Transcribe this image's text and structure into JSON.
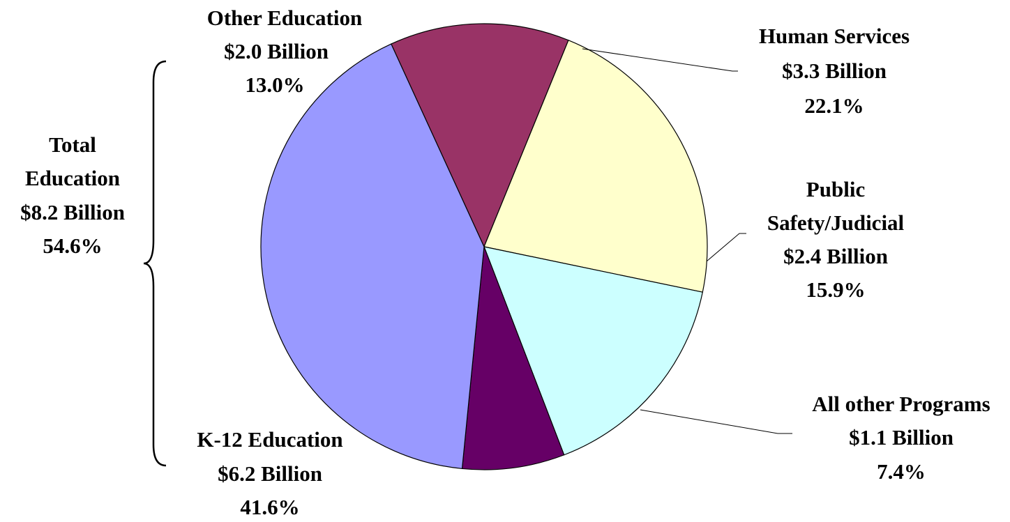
{
  "chart_data": {
    "type": "pie",
    "title": "",
    "start_angle_deg": -114.6,
    "direction": "clockwise",
    "slices": [
      {
        "label": "Other Education",
        "amount": "$2.0 Billion",
        "percent": "13.0%",
        "value": 13.0,
        "color": "#993366"
      },
      {
        "label": "Human Services",
        "amount": "$3.3 Billion",
        "percent": "22.1%",
        "value": 22.1,
        "color": "#FFFFCC"
      },
      {
        "label": "Public Safety/Judicial",
        "amount": "$2.4 Billion",
        "percent": "15.9%",
        "value": 15.9,
        "color": "#CCFFFF"
      },
      {
        "label": "All other Programs",
        "amount": "$1.1 Billion",
        "percent": "7.4%",
        "value": 7.4,
        "color": "#660066"
      },
      {
        "label": "K-12 Education",
        "amount": "$6.2 Billion",
        "percent": "41.6%",
        "value": 41.6,
        "color": "#9999FF"
      }
    ],
    "group_annotation": {
      "lines": [
        "Total",
        "Education",
        "$8.2 Billion",
        "54.6%"
      ],
      "covers": [
        "Other Education",
        "K-12 Education"
      ]
    }
  },
  "labels": {
    "other_education": [
      "Other Education",
      "$2.0 Billion",
      "13.0%"
    ],
    "human_services": [
      "Human Services",
      "$3.3 Billion",
      "22.1%"
    ],
    "public_safety": [
      "Public",
      "Safety/Judicial",
      "$2.4 Billion",
      "15.9%"
    ],
    "all_other": [
      "All other Programs",
      "$1.1 Billion",
      "7.4%"
    ],
    "k12": [
      "K-12 Education",
      "$6.2 Billion",
      "41.6%"
    ],
    "total_education": [
      "Total",
      "Education",
      "$8.2 Billion",
      "54.6%"
    ]
  }
}
